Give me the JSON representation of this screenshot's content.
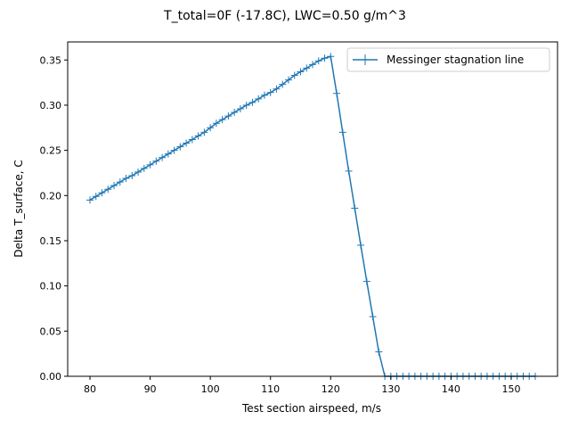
{
  "chart_data": {
    "type": "line",
    "title": "T_total=0F (-17.8C), LWC=0.50 g/m^3",
    "xlabel": "Test section airspeed, m/s",
    "ylabel": "Delta T_surface, C",
    "xlim": [
      76.3,
      157.7
    ],
    "ylim": [
      0,
      0.37
    ],
    "xticks": [
      80,
      90,
      100,
      110,
      120,
      130,
      140,
      150
    ],
    "xtick_labels": [
      "80",
      "90",
      "100",
      "110",
      "120",
      "130",
      "140",
      "150"
    ],
    "yticks": [
      0.0,
      0.05,
      0.1,
      0.15,
      0.2,
      0.25,
      0.3,
      0.35
    ],
    "ytick_labels": [
      "0.00",
      "0.05",
      "0.10",
      "0.15",
      "0.20",
      "0.25",
      "0.30",
      "0.35"
    ],
    "grid": false,
    "legend_position": "top-right",
    "series": [
      {
        "name": "Messinger stagnation line",
        "color": "#1f77b4",
        "marker": "plus",
        "x": [
          80,
          81,
          82,
          83,
          84,
          85,
          86,
          87,
          88,
          89,
          90,
          91,
          92,
          93,
          94,
          95,
          96,
          97,
          98,
          99,
          100,
          101,
          102,
          103,
          104,
          105,
          106,
          107,
          108,
          109,
          110,
          111,
          112,
          113,
          114,
          115,
          116,
          117,
          118,
          119,
          120,
          121,
          122,
          123,
          124,
          125,
          126,
          127,
          128,
          129,
          130,
          131,
          132,
          133,
          134,
          135,
          136,
          137,
          138,
          139,
          140,
          141,
          142,
          143,
          144,
          145,
          146,
          147,
          148,
          149,
          150,
          151,
          152,
          153,
          154
        ],
        "y": [
          0.195,
          0.199,
          0.203,
          0.207,
          0.211,
          0.215,
          0.219,
          0.222,
          0.226,
          0.23,
          0.234,
          0.238,
          0.242,
          0.246,
          0.25,
          0.254,
          0.258,
          0.262,
          0.266,
          0.27,
          0.275,
          0.28,
          0.284,
          0.288,
          0.292,
          0.296,
          0.3,
          0.303,
          0.307,
          0.311,
          0.314,
          0.318,
          0.323,
          0.328,
          0.333,
          0.337,
          0.341,
          0.345,
          0.349,
          0.352,
          0.354,
          0.313,
          0.27,
          0.227,
          0.186,
          0.145,
          0.105,
          0.066,
          0.027,
          0,
          0,
          0,
          0,
          0,
          0,
          0,
          0,
          0,
          0,
          0,
          0,
          0,
          0,
          0,
          0,
          0,
          0,
          0,
          0,
          0,
          0,
          0,
          0,
          0,
          0
        ]
      }
    ]
  }
}
